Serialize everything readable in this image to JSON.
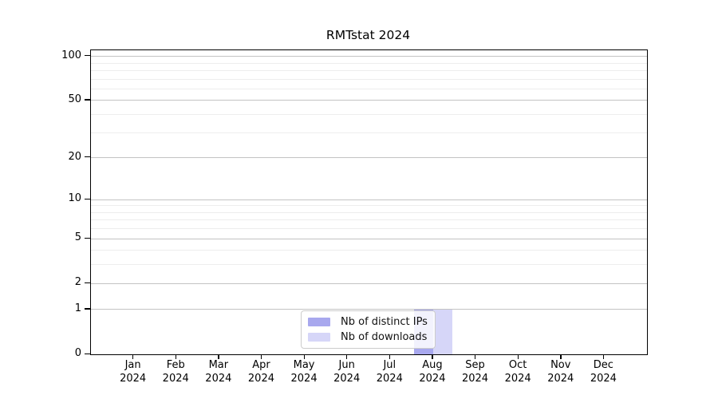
{
  "title": "RMTstat 2024",
  "legend": {
    "items": [
      {
        "label": "Nb of distinct IPs",
        "color": "#a8a8ee"
      },
      {
        "label": "Nb of downloads",
        "color": "#d6d6f8"
      }
    ]
  },
  "y_axis": {
    "scale": "log1p",
    "max": 110,
    "major_ticks": [
      {
        "value": 100,
        "label": "100"
      },
      {
        "value": 50,
        "label": "50"
      },
      {
        "value": 20,
        "label": "20"
      },
      {
        "value": 10,
        "label": "10"
      },
      {
        "value": 5,
        "label": "5"
      },
      {
        "value": 2,
        "label": "2"
      },
      {
        "value": 1,
        "label": "1"
      },
      {
        "value": 0,
        "label": "0"
      }
    ],
    "minor_tick_values": [
      3,
      4,
      6,
      7,
      8,
      9,
      30,
      40,
      60,
      70,
      80,
      90
    ]
  },
  "x_axis": {
    "ticks": [
      {
        "month": "Jan",
        "year": "2024"
      },
      {
        "month": "Feb",
        "year": "2024"
      },
      {
        "month": "Mar",
        "year": "2024"
      },
      {
        "month": "Apr",
        "year": "2024"
      },
      {
        "month": "May",
        "year": "2024"
      },
      {
        "month": "Jun",
        "year": "2024"
      },
      {
        "month": "Jul",
        "year": "2024"
      },
      {
        "month": "Aug",
        "year": "2024"
      },
      {
        "month": "Sep",
        "year": "2024"
      },
      {
        "month": "Oct",
        "year": "2024"
      },
      {
        "month": "Nov",
        "year": "2024"
      },
      {
        "month": "Dec",
        "year": "2024"
      }
    ]
  },
  "grid": {
    "major_color": "#c3c3c3",
    "minor_color": "#ededed"
  },
  "chart_data": {
    "type": "bar",
    "title": "RMTstat 2024",
    "categories": [
      "Jan 2024",
      "Feb 2024",
      "Mar 2024",
      "Apr 2024",
      "May 2024",
      "Jun 2024",
      "Jul 2024",
      "Aug 2024",
      "Sep 2024",
      "Oct 2024",
      "Nov 2024",
      "Dec 2024"
    ],
    "series": [
      {
        "name": "Nb of distinct IPs",
        "color": "#a8a8ee",
        "values": [
          0,
          0,
          0,
          0,
          0,
          0,
          0,
          1,
          0,
          0,
          0,
          0
        ]
      },
      {
        "name": "Nb of downloads",
        "color": "#d6d6f8",
        "values": [
          0,
          0,
          0,
          0,
          0,
          0,
          0,
          1,
          0,
          0,
          0,
          0
        ]
      }
    ],
    "xlabel": "",
    "ylabel": "",
    "yscale": "log1p",
    "ylim": [
      0,
      110
    ],
    "ytick_values": [
      0,
      1,
      2,
      5,
      10,
      20,
      50,
      100
    ],
    "grid": true,
    "legend_position": "lower center"
  }
}
